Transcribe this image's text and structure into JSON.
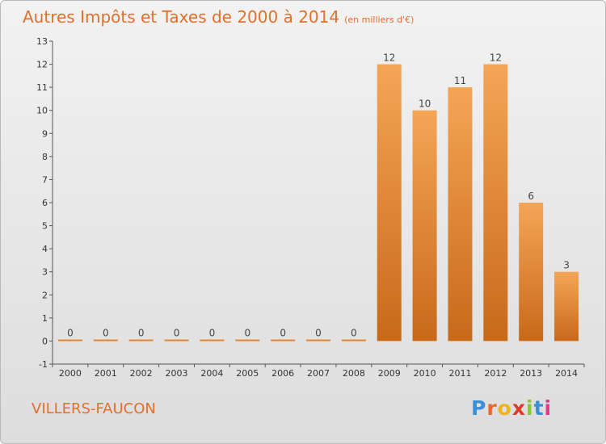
{
  "title": "Autres Impôts et Taxes de 2000 à 2014",
  "subtitle": "(en milliers d'€)",
  "commune": "VILLERS-FAUCON",
  "logo": {
    "letters": [
      "P",
      "r",
      "o",
      "x",
      "i",
      "t",
      "i"
    ],
    "colors": [
      "#3a8fd6",
      "#e86a2a",
      "#f0b21e",
      "#e03a2a",
      "#8cc43c",
      "#3a8fd6",
      "#e03a8a"
    ]
  },
  "colors": {
    "bar_light": "#f5a556",
    "bar_dark": "#c8691a",
    "title": "#e0702c"
  },
  "chart_data": {
    "type": "bar",
    "categories": [
      "2000",
      "2001",
      "2002",
      "2003",
      "2004",
      "2005",
      "2006",
      "2007",
      "2008",
      "2009",
      "2010",
      "2011",
      "2012",
      "2013",
      "2014"
    ],
    "values": [
      0,
      0,
      0,
      0,
      0,
      0,
      0,
      0,
      0,
      12,
      10,
      11,
      12,
      6,
      3
    ],
    "ylim": [
      -1,
      13
    ],
    "yticks": [
      -1,
      0,
      1,
      2,
      3,
      4,
      5,
      6,
      7,
      8,
      9,
      10,
      11,
      12,
      13
    ],
    "grid": false,
    "legend": "none"
  }
}
